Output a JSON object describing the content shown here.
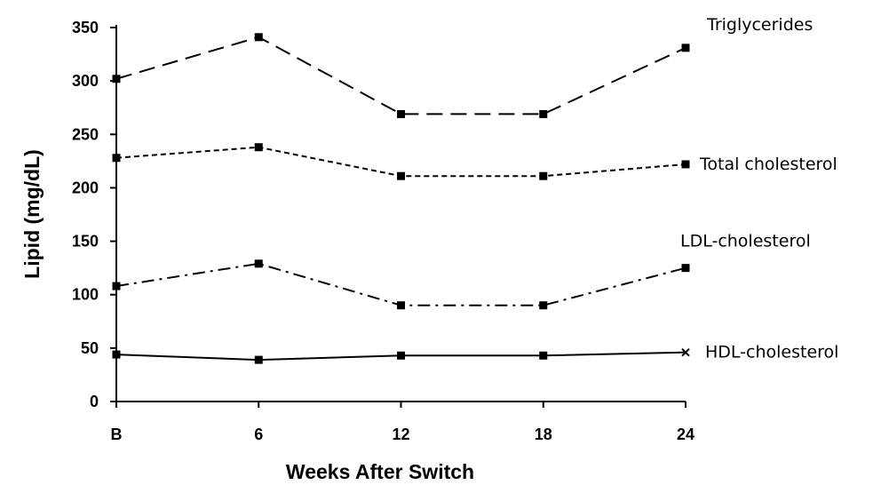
{
  "chart_data": {
    "type": "line",
    "title": "",
    "xlabel": "Weeks After Switch",
    "ylabel": "Lipid (mg/dL)",
    "categories": [
      "B",
      "6",
      "12",
      "18",
      "24"
    ],
    "ylim": [
      0,
      350
    ],
    "yticks": [
      "0",
      "50",
      "100",
      "150",
      "200",
      "250",
      "300",
      "350"
    ],
    "grid": false,
    "legend": "inline labels at right end of each series",
    "series": [
      {
        "name": "Triglycerides",
        "values": [
          302,
          341,
          269,
          269,
          331
        ],
        "line_style": "long-dash",
        "marker": "square",
        "color": "#000000"
      },
      {
        "name": "Total cholesterol",
        "values": [
          228,
          238,
          211,
          211,
          222
        ],
        "line_style": "short-dash",
        "marker": "square",
        "color": "#000000"
      },
      {
        "name": "LDL-cholesterol",
        "values": [
          108,
          129,
          90,
          90,
          125
        ],
        "line_style": "dash-dot",
        "marker": "square",
        "color": "#000000"
      },
      {
        "name": "HDL-cholesterol",
        "values": [
          44,
          39,
          43,
          43,
          46
        ],
        "line_style": "solid",
        "marker": "square",
        "end_marker": "x",
        "color": "#000000"
      }
    ]
  }
}
